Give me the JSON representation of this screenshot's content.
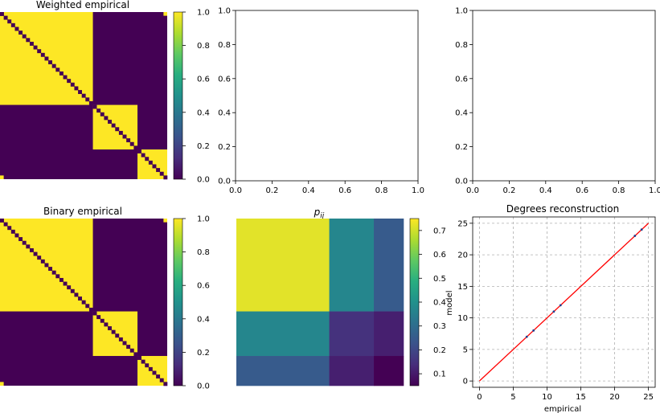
{
  "colors": {
    "viridis_low": "#440154",
    "viridis_high": "#fde725",
    "fit_line": "#ff0000",
    "points": "#1f3f8f",
    "grid": "#b0b0b0"
  },
  "chart_data": [
    {
      "type": "heatmap",
      "title": "Weighted empirical",
      "blocks": [
        25,
        12,
        8
      ],
      "values": "1 within diagonal blocks (except diagonal), 0 elsewhere",
      "colorbar": {
        "ticks": [
          "0.0",
          "0.2",
          "0.4",
          "0.6",
          "0.8",
          "1.0"
        ],
        "range": [
          0,
          1
        ]
      }
    },
    {
      "type": "empty",
      "title": "",
      "xlim": [
        0,
        1
      ],
      "ylim": [
        0,
        1
      ],
      "xticks": [
        "0.0",
        "0.2",
        "0.4",
        "0.6",
        "0.8",
        "1.0"
      ],
      "yticks": [
        "0.0",
        "0.2",
        "0.4",
        "0.6",
        "0.8",
        "1.0"
      ]
    },
    {
      "type": "empty",
      "title": "",
      "xlim": [
        0,
        1
      ],
      "ylim": [
        0,
        1
      ],
      "xticks": [
        "0.0",
        "0.2",
        "0.4",
        "0.6",
        "0.8",
        "1.0"
      ],
      "yticks": [
        "0.0",
        "0.2",
        "0.4",
        "0.6",
        "0.8",
        "1.0"
      ]
    },
    {
      "type": "heatmap",
      "title": "Binary empirical",
      "blocks": [
        25,
        12,
        8
      ],
      "values": "1 within diagonal blocks (except diagonal), 0 elsewhere",
      "colorbar": {
        "ticks": [
          "0.0",
          "0.2",
          "0.4",
          "0.6",
          "0.8",
          "1.0"
        ],
        "range": [
          0,
          1
        ]
      }
    },
    {
      "type": "heatmap",
      "title_base": "p",
      "title_sub": "ij",
      "block_sizes": [
        25,
        12,
        8
      ],
      "block_matrix": [
        [
          0.72,
          0.37,
          0.25
        ],
        [
          0.37,
          0.15,
          0.11
        ],
        [
          0.25,
          0.11,
          0.05
        ]
      ],
      "colorbar": {
        "ticks": [
          "0.1",
          "0.2",
          "0.3",
          "0.4",
          "0.5",
          "0.6",
          "0.7"
        ],
        "range": [
          0.05,
          0.75
        ]
      }
    },
    {
      "type": "scatter",
      "title": "Degrees reconstruction",
      "xlabel": "empirical",
      "ylabel": "model",
      "xlim": [
        -1,
        26
      ],
      "ylim": [
        -1,
        26
      ],
      "xticks": [
        "0",
        "5",
        "10",
        "15",
        "20",
        "25"
      ],
      "yticks": [
        "0",
        "5",
        "10",
        "15",
        "20",
        "25"
      ],
      "grid": true,
      "points": [
        {
          "x": 7,
          "y": 7
        },
        {
          "x": 8,
          "y": 8
        },
        {
          "x": 11,
          "y": 11
        },
        {
          "x": 12,
          "y": 12
        },
        {
          "x": 23,
          "y": 23
        },
        {
          "x": 24,
          "y": 24
        }
      ],
      "line": {
        "from": [
          0,
          0
        ],
        "to": [
          25,
          25
        ]
      }
    }
  ]
}
